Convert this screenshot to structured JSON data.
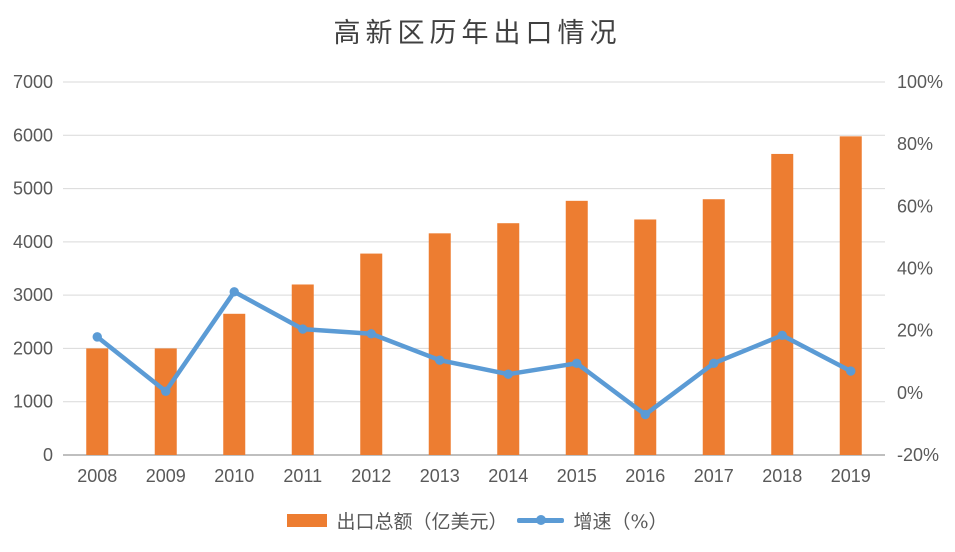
{
  "colors": {
    "bar": "#ED7D31",
    "line": "#5B9BD5",
    "grid": "#D9D9D9",
    "axis_line": "#BFBFBF",
    "tick_text": "#595959",
    "title_text": "#404040",
    "legend_text": "#595959",
    "background": "#FFFFFF"
  },
  "chart_data": {
    "type": "combo",
    "title": "高新区历年出口情况",
    "categories": [
      "2008",
      "2009",
      "2010",
      "2011",
      "2012",
      "2013",
      "2014",
      "2015",
      "2016",
      "2017",
      "2018",
      "2019"
    ],
    "series": [
      {
        "name": "出口总额（亿美元）",
        "type": "bar",
        "axis": "left",
        "color": "#ED7D31",
        "values": [
          2000,
          2000,
          2650,
          3200,
          3780,
          4160,
          4350,
          4770,
          4420,
          4800,
          5650,
          5980
        ]
      },
      {
        "name": "增速（%）",
        "type": "line",
        "axis": "right",
        "color": "#5B9BD5",
        "values": [
          18,
          0.5,
          32.5,
          20.5,
          19,
          10.5,
          6,
          9.5,
          -7,
          9.5,
          18.5,
          7
        ]
      }
    ],
    "left_axis": {
      "min": 0,
      "max": 7000,
      "step": 1000,
      "tick_labels": [
        "0",
        "1000",
        "2000",
        "3000",
        "4000",
        "5000",
        "6000",
        "7000"
      ]
    },
    "right_axis": {
      "min": -20,
      "max": 100,
      "step": 20,
      "tick_labels": [
        "-20%",
        "0%",
        "20%",
        "40%",
        "60%",
        "80%",
        "100%"
      ]
    },
    "grid": "horizontal",
    "legend_position": "bottom"
  }
}
